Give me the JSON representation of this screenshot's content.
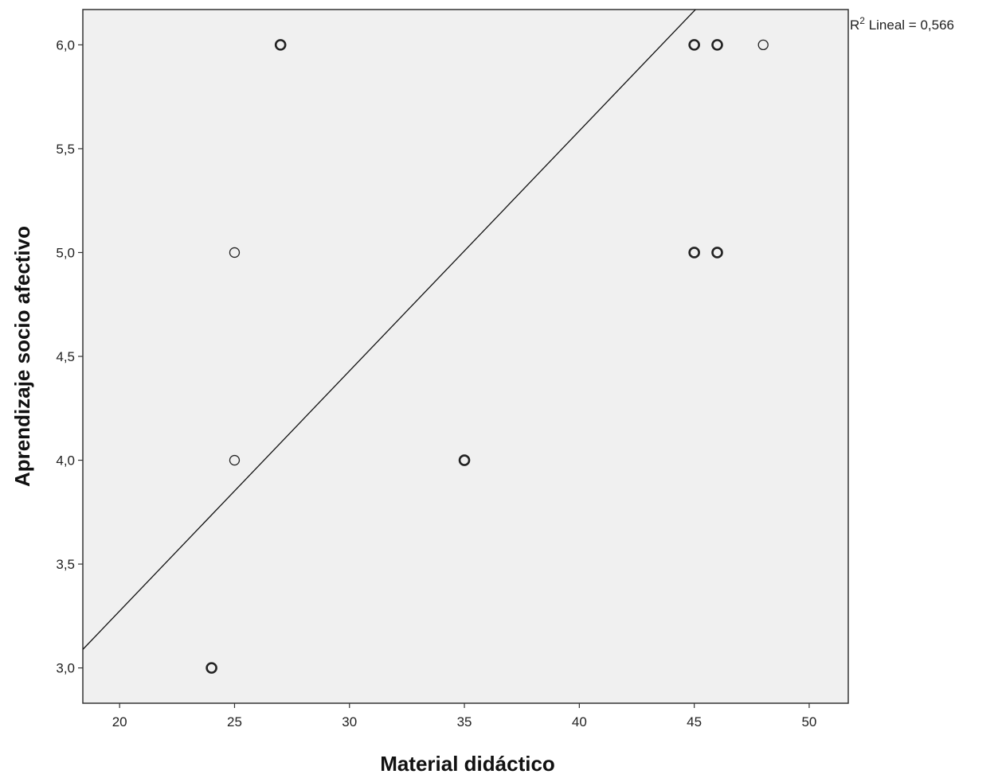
{
  "chart_data": {
    "type": "scatter",
    "title": "",
    "xlabel": "Material didáctico",
    "ylabel": "Aprendizaje socio afectivo",
    "xlim": [
      18.4,
      51.7
    ],
    "ylim": [
      2.83,
      6.17
    ],
    "x_ticks": [
      20,
      25,
      30,
      35,
      40,
      45,
      50
    ],
    "x_tick_labels": [
      "20",
      "25",
      "30",
      "35",
      "40",
      "45",
      "50"
    ],
    "y_ticks": [
      3.0,
      3.5,
      4.0,
      4.5,
      5.0,
      5.5,
      6.0
    ],
    "y_tick_labels": [
      "3,0",
      "3,5",
      "4,0",
      "4,5",
      "5,0",
      "5,5",
      "6,0"
    ],
    "grid": false,
    "plot_background": "#f0f0f0",
    "marker_color": "#222222",
    "line_color": "#111111",
    "marker": "open-circle",
    "points": [
      {
        "x": 24,
        "y": 3.0,
        "bold": true
      },
      {
        "x": 25,
        "y": 4.0,
        "bold": false
      },
      {
        "x": 25,
        "y": 5.0,
        "bold": false
      },
      {
        "x": 27,
        "y": 6.0,
        "bold": true
      },
      {
        "x": 35,
        "y": 4.0,
        "bold": true
      },
      {
        "x": 45,
        "y": 5.0,
        "bold": true
      },
      {
        "x": 45,
        "y": 6.0,
        "bold": true
      },
      {
        "x": 46,
        "y": 5.0,
        "bold": true
      },
      {
        "x": 46,
        "y": 6.0,
        "bold": true
      },
      {
        "x": 48,
        "y": 6.0,
        "bold": false
      }
    ],
    "fit_line": {
      "type": "linear",
      "slope": 0.1156,
      "intercept": 0.962
    },
    "annotation": {
      "prefix": "R",
      "superscript": "2",
      "suffix": " Lineal = 0,566",
      "placement": "top-right"
    }
  }
}
